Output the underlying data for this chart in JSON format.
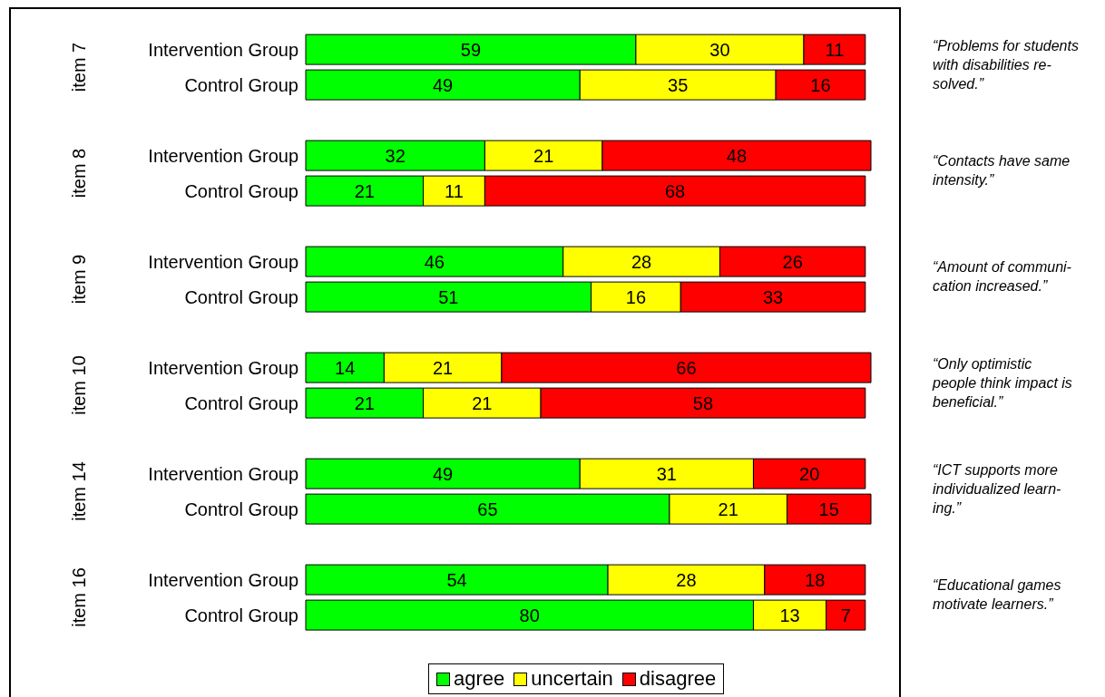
{
  "chart_data": {
    "type": "bar",
    "orientation": "horizontal",
    "stacked": true,
    "data_labels": true,
    "legend": "bottom",
    "categories": [
      "Intervention Group",
      "Control Group",
      "Intervention Group",
      "Control Group",
      "Intervention Group",
      "Control Group",
      "Intervention Group",
      "Control Group",
      "Intervention Group",
      "Control Group",
      "Intervention Group",
      "Control Group"
    ],
    "series": [
      {
        "name": "agree",
        "color": "#00ff00",
        "values": [
          59,
          49,
          32,
          21,
          46,
          51,
          14,
          21,
          49,
          65,
          54,
          80
        ]
      },
      {
        "name": "uncertain",
        "color": "#ffff00",
        "values": [
          30,
          35,
          21,
          11,
          28,
          16,
          21,
          21,
          31,
          21,
          28,
          13
        ]
      },
      {
        "name": "disagree",
        "color": "#ff0000",
        "values": [
          11,
          16,
          48,
          68,
          26,
          33,
          66,
          58,
          20,
          15,
          18,
          7
        ]
      }
    ],
    "annotations": [
      "item 7",
      "“Problems for students\nwith disabilities re-\nsolved.”",
      "item 8",
      "“Contacts have same\nintensity.”",
      "item 9",
      "“Amount of communi-\ncation increased.”",
      "item 10",
      "“Only optimistic\npeople think impact is\nbeneficial.”",
      "item 14",
      "“ICT supports more\nindividualized learn-\ning.”",
      "item 16",
      "“Educational games\nmotivate learners.”"
    ]
  }
}
